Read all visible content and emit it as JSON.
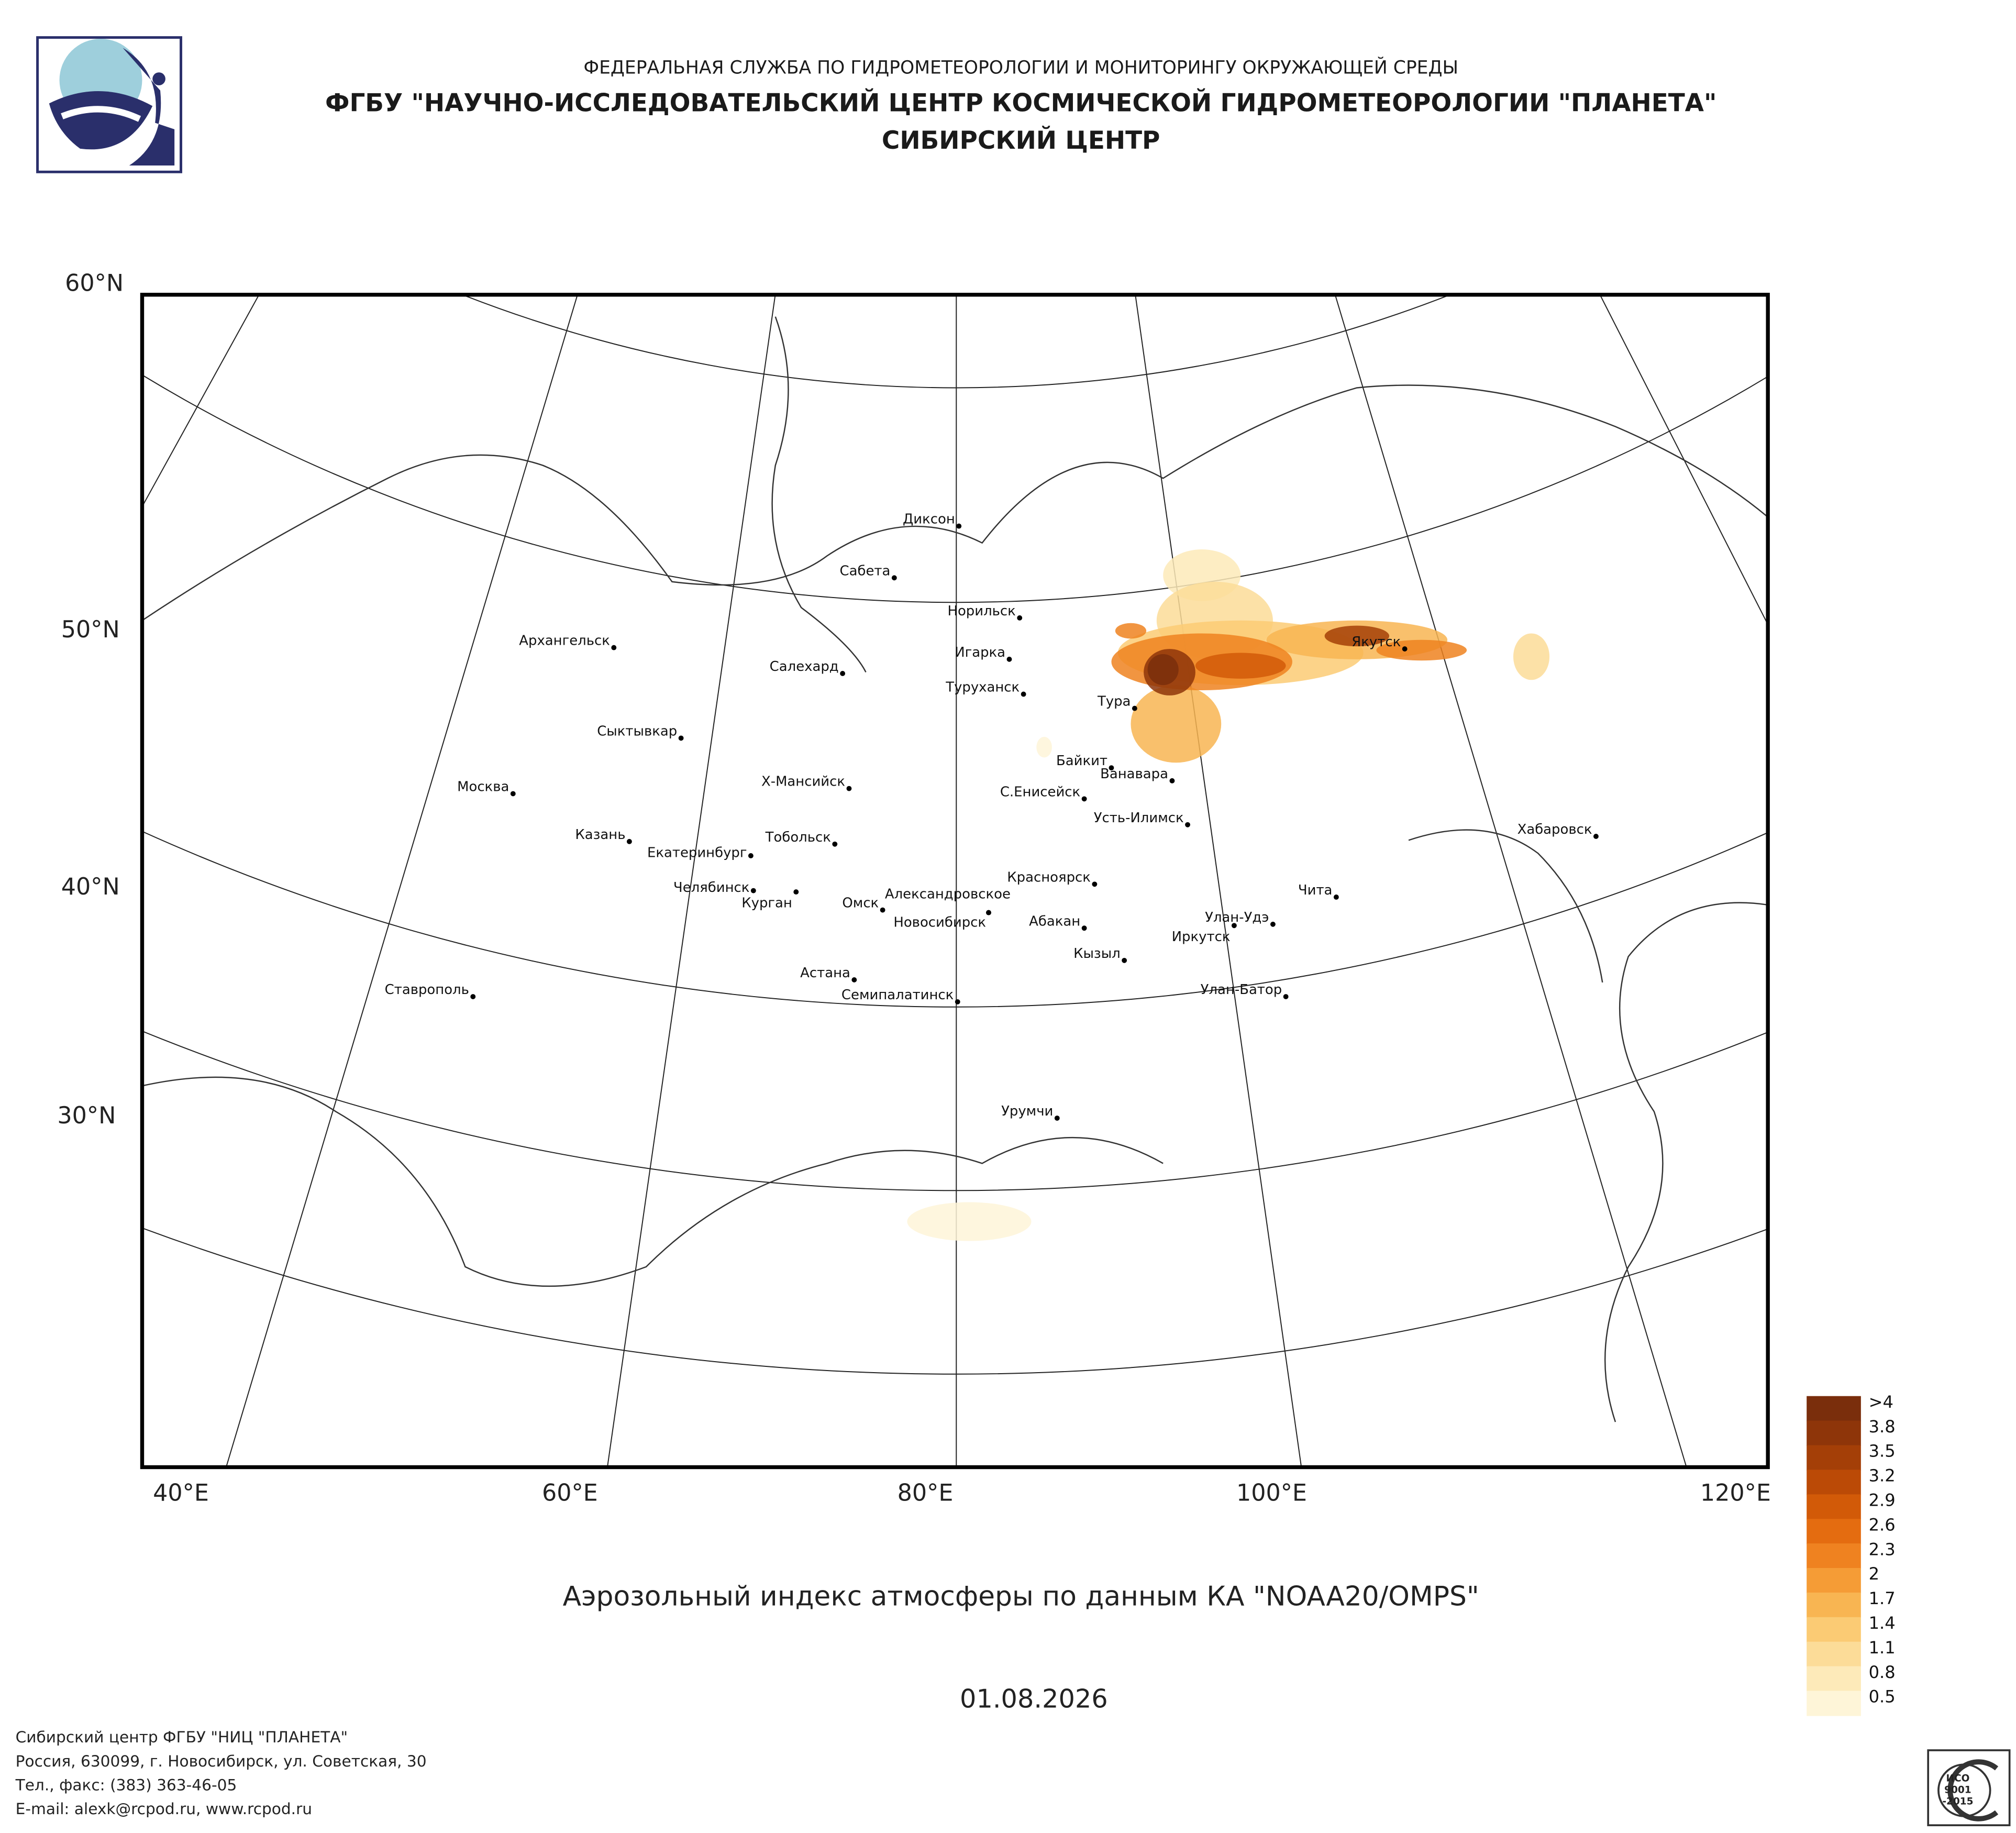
{
  "header": {
    "line1": "ФЕДЕРАЛЬНАЯ СЛУЖБА ПО ГИДРОМЕТЕОРОЛОГИИ И МОНИТОРИНГУ ОКРУЖАЮЩЕЙ СРЕДЫ",
    "line2": "ФГБУ \"НАУЧНО-ИССЛЕДОВАТЕЛЬСКИЙ ЦЕНТР КОСМИЧЕСКОЙ ГИДРОМЕТЕОРОЛОГИИ \"ПЛАНЕТА\"",
    "line3": "СИБИРСКИЙ ЦЕНТР"
  },
  "map": {
    "lat_labels": [
      "60°N",
      "50°N",
      "40°N",
      "30°N"
    ],
    "lon_labels": [
      "40°E",
      "60°E",
      "80°E",
      "100°E",
      "120°E"
    ],
    "cities": [
      "Диксон",
      "Сабета",
      "Норильск",
      "Игарка",
      "Салехард",
      "Туруханск",
      "Тура",
      "Архангельск",
      "Якутск",
      "Сыктывкар",
      "Байкит",
      "Ванавара",
      "Х-Мансийск",
      "Москва",
      "С.Енисейск",
      "Усть-Илимск",
      "Хабаровск",
      "Казань",
      "Тобольск",
      "Екатеринбург",
      "Красноярск",
      "Челябинск",
      "Чита",
      "Александровское",
      "Курган",
      "Омск",
      "Новосибирск",
      "Улан-Удэ",
      "Абакан",
      "Иркутск",
      "Кызыл",
      "Астана",
      "Ставрополь",
      "Улан-Батор",
      "Семипалатинск",
      "Урумчи"
    ]
  },
  "caption": "Аэрозольный индекс атмосферы по данным КА \"NOAA20/OMPS\"",
  "date": "01.08.2026",
  "legend": {
    "labels": [
      ">4",
      "3.8",
      "3.5",
      "3.2",
      "2.9",
      "2.6",
      "2.3",
      "2",
      "1.7",
      "1.4",
      "1.1",
      "0.8",
      "0.5"
    ],
    "colors": [
      "#7a2e0c",
      "#8e3509",
      "#a43f07",
      "#bb4a06",
      "#d25a08",
      "#e46c10",
      "#ef8220",
      "#f59c36",
      "#f8b552",
      "#fbcb74",
      "#fcdc98",
      "#fdeab9",
      "#fef5d8"
    ]
  },
  "footer": {
    "lines": [
      "Сибирский центр ФГБУ \"НИЦ \"ПЛАНЕТА\"",
      "Россия, 630099, г. Новосибирск, ул. Советская, 30",
      "Тел., факс: (383) 363-46-05",
      "E-mail: alexk@rcpod.ru, www.rcpod.ru"
    ]
  },
  "badge": {
    "lines": [
      "ИСО",
      "9001",
      "-2015"
    ]
  }
}
